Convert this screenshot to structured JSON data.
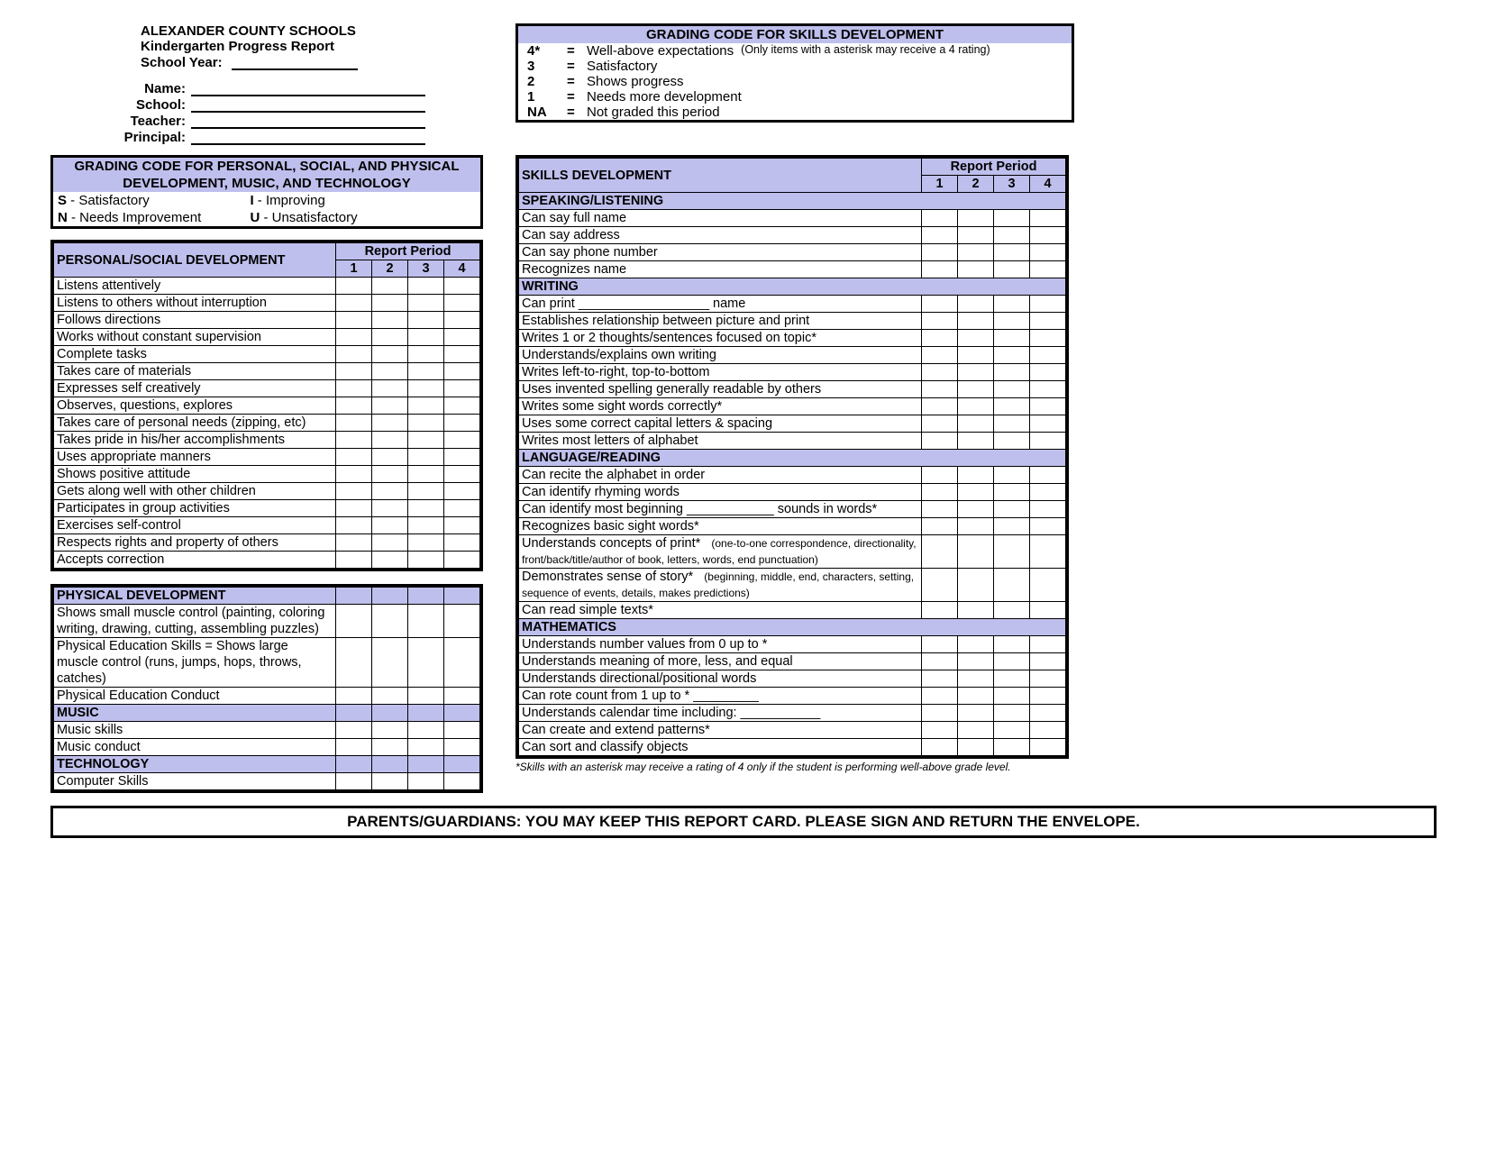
{
  "colors": {
    "header_bg": "#bfbfed",
    "border": "#000000",
    "page_bg": "#ffffff"
  },
  "header": {
    "district": "ALEXANDER COUNTY SCHOOLS",
    "report_title": "Kindergarten Progress Report",
    "school_year_label": "School Year:",
    "name_label": "Name:",
    "school_label": "School:",
    "teacher_label": "Teacher:",
    "principal_label": "Principal:"
  },
  "skills_grading_code": {
    "title": "GRADING CODE FOR SKILLS DEVELOPMENT",
    "lines": [
      {
        "code": "4*",
        "desc": "Well-above expectations",
        "note": "(Only items with a asterisk may receive a 4 rating)"
      },
      {
        "code": "3",
        "desc": "Satisfactory"
      },
      {
        "code": "2",
        "desc": "Shows progress"
      },
      {
        "code": "1",
        "desc": "Needs more development"
      },
      {
        "code": "NA",
        "desc": "Not graded this period"
      }
    ]
  },
  "pspm_grading_code": {
    "title_line1": "GRADING CODE FOR PERSONAL, SOCIAL, AND PHYSICAL",
    "title_line2": "DEVELOPMENT, MUSIC, AND TECHNOLOGY",
    "codes": [
      {
        "letter": "S",
        "desc": "Satisfactory"
      },
      {
        "letter": "I",
        "desc": "Improving"
      },
      {
        "letter": "N",
        "desc": "Needs Improvement"
      },
      {
        "letter": "U",
        "desc": "Unsatisfactory"
      }
    ]
  },
  "report_period_label": "Report Period",
  "period_numbers": [
    "1",
    "2",
    "3",
    "4"
  ],
  "left_sections": [
    {
      "header": "PERSONAL/SOCIAL DEVELOPMENT",
      "show_period_header": true,
      "rows": [
        {
          "text": "Listens attentively"
        },
        {
          "text": "Listens to others without interruption"
        },
        {
          "text": "Follows directions"
        },
        {
          "text": "Works without constant supervision"
        },
        {
          "text": "Complete tasks"
        },
        {
          "text": "Takes care of materials"
        },
        {
          "text": "Expresses self creatively"
        },
        {
          "text": "Observes, questions, explores"
        },
        {
          "text": "Takes care of personal needs (zipping, etc)"
        },
        {
          "text": "Takes pride in his/her accomplishments"
        },
        {
          "text": "Uses appropriate manners"
        },
        {
          "text": "Shows positive attitude"
        },
        {
          "text": "Gets along well with other children"
        },
        {
          "text": "Participates in group activities"
        },
        {
          "text": "Exercises self-control"
        },
        {
          "text": "Respects rights and property of others"
        },
        {
          "text": "Accepts correction"
        }
      ]
    },
    {
      "header": "PHYSICAL DEVELOPMENT",
      "show_period_header": false,
      "rows": [
        {
          "text": "Shows small muscle control (painting, coloring writing, drawing, cutting, assembling puzzles)",
          "height": 2
        },
        {
          "text": "Physical Education Skills = Shows large muscle control (runs, jumps, hops, throws, catches)",
          "height": 2
        },
        {
          "text": "Physical Education Conduct"
        }
      ]
    },
    {
      "header": "MUSIC",
      "show_period_header": false,
      "rows": [
        {
          "text": "Music skills"
        },
        {
          "text": "Music conduct"
        }
      ]
    },
    {
      "header": "TECHNOLOGY",
      "show_period_header": false,
      "rows": [
        {
          "text": "Computer Skills"
        }
      ]
    }
  ],
  "skills_development": {
    "title": "SKILLS DEVELOPMENT",
    "subsections": [
      {
        "header": "SPEAKING/LISTENING",
        "rows": [
          {
            "text": "Can say full name"
          },
          {
            "text": "Can say address"
          },
          {
            "text": "Can say phone number"
          },
          {
            "text": "Recognizes name"
          }
        ]
      },
      {
        "header": "WRITING",
        "rows": [
          {
            "text": "Can print __________________ name"
          },
          {
            "text": "Establishes relationship between picture and print"
          },
          {
            "text": "Writes 1 or 2 thoughts/sentences focused on topic*"
          },
          {
            "text": "Understands/explains own writing"
          },
          {
            "text": "Writes left-to-right, top-to-bottom"
          },
          {
            "text": "Uses invented spelling generally readable by others"
          },
          {
            "text": "Writes some sight words correctly*"
          },
          {
            "text": "Uses some correct capital letters & spacing"
          },
          {
            "text": "Writes most letters of alphabet"
          }
        ]
      },
      {
        "header": "LANGUAGE/READING",
        "rows": [
          {
            "text": "Can recite the alphabet in order"
          },
          {
            "text": "Can identify rhyming words"
          },
          {
            "text": "Can identify most beginning ____________ sounds in words*"
          },
          {
            "text": "Recognizes basic sight words*"
          },
          {
            "main": "Understands concepts of print*",
            "note": "(one-to-one correspondence, directionality, front/back/title/author of book, letters, words, end punctuation)",
            "height": 2
          },
          {
            "main": "Demonstrates sense of story*",
            "note": "(beginning, middle, end, characters, setting, sequence of events, details, makes predictions)",
            "height": 2
          },
          {
            "text": "Can read simple texts*"
          }
        ]
      },
      {
        "header": "MATHEMATICS",
        "rows": [
          {
            "text": "Understands number values from 0 up to *"
          },
          {
            "text": "Understands meaning of more, less, and equal"
          },
          {
            "text": "Understands directional/positional words"
          },
          {
            "text": "Can rote count from 1 up to * _________"
          },
          {
            "text": "Understands calendar time including: ___________"
          },
          {
            "text": "Can create and extend patterns*"
          },
          {
            "text": "Can sort and classify objects"
          }
        ]
      }
    ],
    "footnote": "*Skills with an asterisk may receive a rating of 4 only if the student is performing well-above grade level."
  },
  "footer_banner": "PARENTS/GUARDIANS:  YOU MAY KEEP THIS REPORT CARD.  PLEASE SIGN AND RETURN THE ENVELOPE."
}
